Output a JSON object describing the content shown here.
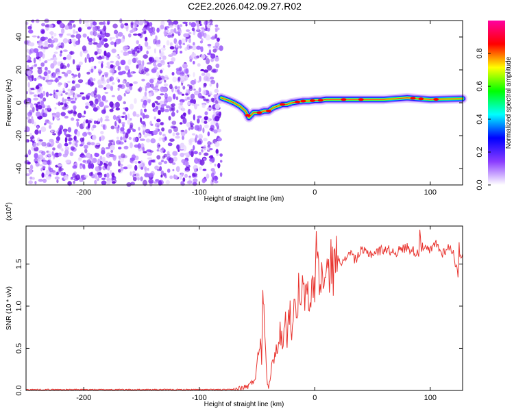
{
  "title": "C2E2.2026.042.09.27.R02",
  "chart_data": [
    {
      "type": "heatmap",
      "name": "spectrogram",
      "xlabel": "Height of straight line (km)",
      "ylabel": "Frequency (Hz)",
      "xlim": [
        -250,
        128
      ],
      "ylim": [
        -50,
        50
      ],
      "xticks": [
        -200,
        -100,
        0,
        100
      ],
      "xtick_labels": [
        "-200",
        "-100",
        "0",
        "100"
      ],
      "yticks": [
        -40,
        -20,
        0,
        20,
        40
      ],
      "ytick_labels": [
        "-40",
        "-20",
        "0",
        "20",
        "40"
      ],
      "noise_region_x": [
        -250,
        -81
      ],
      "signal_start_x": -81,
      "ridge": {
        "x": [
          -81,
          -75,
          -70,
          -65,
          -60,
          -57,
          -53,
          -48,
          -44,
          -40,
          -36,
          -32,
          -28,
          -24,
          -20,
          -15,
          -10,
          -5,
          0,
          5,
          10,
          20,
          40,
          60,
          80,
          100,
          128
        ],
        "freq": [
          3,
          1.5,
          0,
          -2,
          -5,
          -9,
          -6,
          -6,
          -5,
          -5,
          -3,
          -2,
          -1,
          -1,
          0,
          0.5,
          1,
          1,
          1.5,
          1.5,
          2,
          2,
          2,
          2,
          3,
          2,
          2.5
        ]
      },
      "colorbar": {
        "label": "Normalized spectral amplitude",
        "ticks": [
          0.0,
          0.2,
          0.4,
          0.6,
          0.8
        ],
        "tick_labels": [
          "0.0",
          "0.2",
          "0.4",
          "0.6",
          "0.8"
        ],
        "range": [
          0,
          1
        ],
        "colors": [
          "#ffffff",
          "#8a3cff",
          "#0000ff",
          "#00ffff",
          "#00ff00",
          "#ffff00",
          "#ff0000",
          "#ff00a0"
        ]
      }
    },
    {
      "type": "line",
      "name": "snr",
      "xlabel": "Height of straight line (km)",
      "ylabel": "SNR (10 * v/v)",
      "scale_label": "(x10",
      "scale_exponent": "4",
      "scale_suffix": ")",
      "xlim": [
        -250,
        128
      ],
      "ylim": [
        0,
        1.95
      ],
      "xticks": [
        -200,
        -100,
        0,
        100
      ],
      "xtick_labels": [
        "-200",
        "-100",
        "0",
        "100"
      ],
      "yticks": [
        0.0,
        0.5,
        1.0,
        1.5
      ],
      "ytick_labels": [
        "0.0",
        "0.5",
        "1.0",
        "1.5"
      ],
      "color": "#e8322d",
      "x": [
        -250,
        -200,
        -150,
        -100,
        -70,
        -62,
        -58,
        -55,
        -52,
        -50,
        -48,
        -47,
        -46,
        -45,
        -44,
        -43,
        -42,
        -41,
        -40,
        -38,
        -36,
        -34,
        -32,
        -30,
        -28,
        -26,
        -24,
        -22,
        -20,
        -18,
        -16,
        -14,
        -12,
        -10,
        -8,
        -6,
        -4,
        -2,
        0,
        2,
        4,
        6,
        8,
        10,
        12,
        14,
        16,
        18,
        20,
        25,
        30,
        35,
        40,
        50,
        60,
        70,
        80,
        90,
        91,
        92,
        100,
        105,
        110,
        115,
        120,
        124,
        125,
        126,
        128
      ],
      "y": [
        0.01,
        0.01,
        0.01,
        0.01,
        0.01,
        0.03,
        0.05,
        0.08,
        0.15,
        0.3,
        0.5,
        0.7,
        0.4,
        1.05,
        1.18,
        0.6,
        0.3,
        0.12,
        0.05,
        0.2,
        0.35,
        0.5,
        0.45,
        0.72,
        0.55,
        0.9,
        0.65,
        0.95,
        0.75,
        1.0,
        0.8,
        1.2,
        0.9,
        1.3,
        1.05,
        1.15,
        0.95,
        1.35,
        1.2,
        1.87,
        1.1,
        1.5,
        1.15,
        1.45,
        1.3,
        1.62,
        1.4,
        1.55,
        1.6,
        1.5,
        1.66,
        1.55,
        1.65,
        1.62,
        1.68,
        1.64,
        1.7,
        1.62,
        1.95,
        1.7,
        1.65,
        1.75,
        1.62,
        1.7,
        1.65,
        1.35,
        1.7,
        1.6,
        1.62
      ]
    }
  ]
}
